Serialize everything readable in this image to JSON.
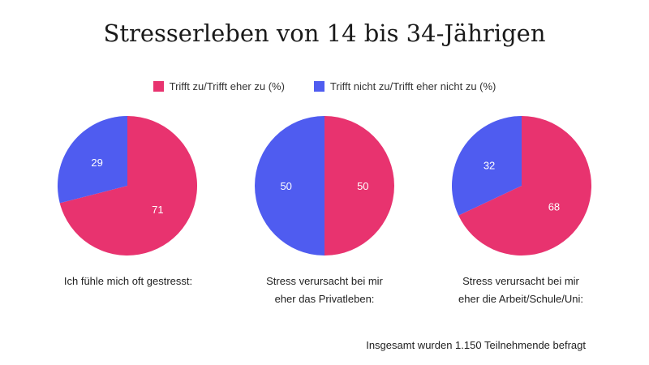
{
  "chart_data": {
    "type": "pie",
    "title": "Stresserleben von 14 bis 34-Jährigen",
    "legend": [
      {
        "name": "Trifft zu/Trifft eher zu (%)",
        "color": "#e8336f"
      },
      {
        "name": "Trifft nicht zu/Trifft eher nicht zu (%)",
        "color": "#4f5cf0"
      }
    ],
    "legend_position": "top-center",
    "pies": [
      {
        "label_lines": [
          "Ich fühle mich oft gestresst:"
        ],
        "values": [
          71,
          29
        ]
      },
      {
        "label_lines": [
          "Stress verursacht bei mir",
          "eher das Privatleben:"
        ],
        "values": [
          50,
          50
        ]
      },
      {
        "label_lines": [
          "Stress verursacht bei mir",
          "eher die Arbeit/Schule/Uni:"
        ],
        "values": [
          68,
          32
        ]
      }
    ],
    "footnote": "Insgesamt wurden 1.150 Teilnehmende befragt"
  }
}
